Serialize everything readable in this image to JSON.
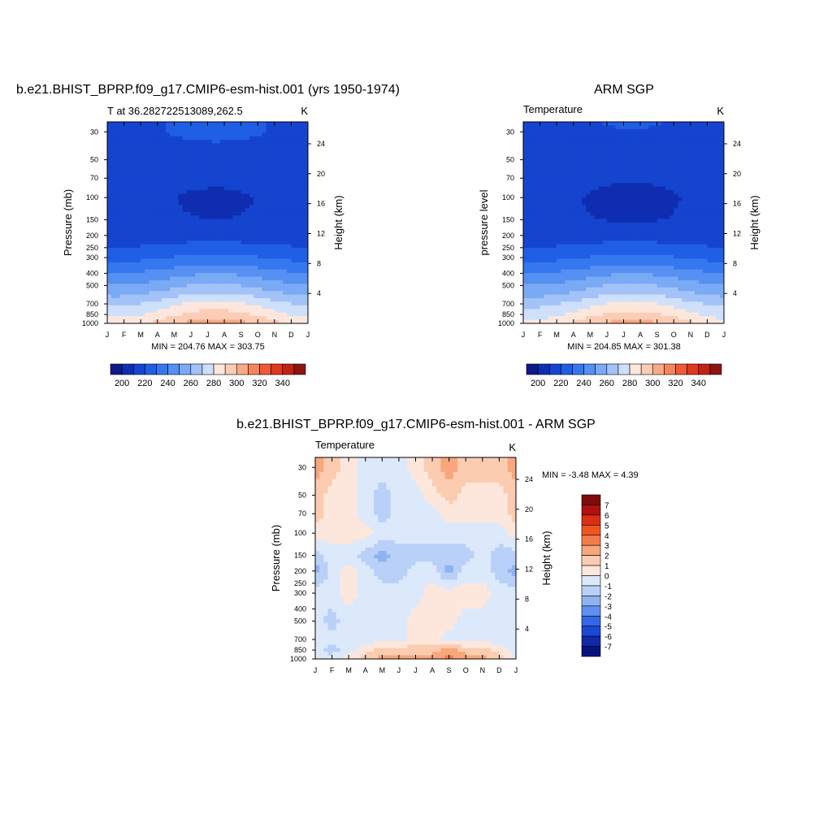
{
  "figure": {
    "panels": [
      {
        "id": "model",
        "title": "b.e21.BHIST_BPRP.f09_g17.CMIP6-esm-hist.001 (yrs 1950-1974)",
        "left_label": "T at 36.282722513089,262.5",
        "units": "K",
        "ylabel": "Pressure (mb)",
        "y2label": "Height (km)",
        "stats": "MIN = 204.76 MAX = 303.75"
      },
      {
        "id": "obs",
        "title": "ARM SGP",
        "left_label": "Temperature",
        "units": "K",
        "ylabel": "pressure level",
        "y2label": "Height (km)",
        "stats": "MIN = 204.85 MAX = 301.38"
      },
      {
        "id": "diff",
        "title": "b.e21.BHIST_BPRP.f09_g17.CMIP6-esm-hist.001 - ARM SGP",
        "left_label": "Temperature",
        "units": "K",
        "ylabel": "Pressure (mb)",
        "y2label": "Height (km)",
        "stats": "MIN =  -3.48 MAX =   4.39"
      }
    ]
  },
  "chart_data": [
    {
      "type": "heatmap",
      "title": "b.e21.BHIST_BPRP.f09_g17.CMIP6-esm-hist.001 (yrs 1950-1974)",
      "subtitle_left": "T at 36.282722513089,262.5",
      "subtitle_right": "K",
      "xlabel": "",
      "ylabel": "Pressure (mb)",
      "y2label": "Height (km)",
      "x": [
        "J",
        "F",
        "M",
        "A",
        "M",
        "J",
        "J",
        "A",
        "S",
        "O",
        "N",
        "D",
        "J"
      ],
      "y_ticks": [
        30,
        50,
        70,
        100,
        150,
        200,
        250,
        300,
        400,
        500,
        700,
        850,
        1000
      ],
      "y2_ticks": [
        24,
        20,
        16,
        12,
        8,
        4
      ],
      "y_scale": "log",
      "ylim": [
        1000,
        25
      ],
      "min": 204.76,
      "max": 303.75,
      "colorbar": {
        "ticks": [
          200,
          220,
          240,
          260,
          280,
          300,
          320,
          340
        ],
        "levels": [
          190,
          200,
          210,
          220,
          230,
          240,
          250,
          260,
          270,
          280,
          290,
          300,
          310,
          320,
          330,
          340,
          350
        ]
      },
      "profile": {
        "pressure": [
          25,
          30,
          50,
          70,
          100,
          150,
          200,
          250,
          300,
          400,
          500,
          700,
          850,
          1000
        ],
        "temperature": [
          220,
          220,
          217,
          213,
          211,
          212,
          216,
          222,
          230,
          245,
          256,
          276,
          286,
          296
        ]
      }
    },
    {
      "type": "heatmap",
      "title": "ARM SGP",
      "subtitle_left": "Temperature",
      "subtitle_right": "K",
      "xlabel": "",
      "ylabel": "pressure level",
      "y2label": "Height (km)",
      "x": [
        "J",
        "F",
        "M",
        "A",
        "M",
        "J",
        "J",
        "A",
        "S",
        "O",
        "N",
        "D",
        "J"
      ],
      "y_ticks": [
        30,
        50,
        70,
        100,
        150,
        200,
        250,
        300,
        400,
        500,
        700,
        850,
        1000
      ],
      "y2_ticks": [
        24,
        20,
        16,
        12,
        8,
        4
      ],
      "y_scale": "log",
      "ylim": [
        1000,
        25
      ],
      "min": 204.85,
      "max": 301.38,
      "colorbar": {
        "ticks": [
          200,
          220,
          240,
          260,
          280,
          300,
          320,
          340
        ],
        "levels": [
          190,
          200,
          210,
          220,
          230,
          240,
          250,
          260,
          270,
          280,
          290,
          300,
          310,
          320,
          330,
          340,
          350
        ]
      },
      "profile": {
        "pressure": [
          25,
          30,
          50,
          70,
          100,
          150,
          200,
          250,
          300,
          400,
          500,
          700,
          850,
          1000
        ],
        "temperature": [
          219,
          218,
          215,
          212,
          210,
          211,
          216,
          222,
          230,
          245,
          256,
          275,
          285,
          294
        ]
      }
    },
    {
      "type": "heatmap",
      "title": "b.e21.BHIST_BPRP.f09_g17.CMIP6-esm-hist.001 - ARM SGP",
      "subtitle_left": "Temperature",
      "subtitle_right": "K",
      "xlabel": "",
      "ylabel": "Pressure (mb)",
      "y2label": "Height (km)",
      "x": [
        "J",
        "F",
        "M",
        "A",
        "M",
        "J",
        "J",
        "A",
        "S",
        "O",
        "N",
        "D",
        "J"
      ],
      "y_ticks": [
        30,
        50,
        70,
        100,
        150,
        200,
        250,
        300,
        400,
        500,
        700,
        850,
        1000
      ],
      "y2_ticks": [
        24,
        20,
        16,
        12,
        8,
        4
      ],
      "y_scale": "log",
      "ylim": [
        1000,
        25
      ],
      "min": -3.48,
      "max": 4.39,
      "colorbar": {
        "ticks": [
          7,
          6,
          5,
          4,
          3,
          2,
          1,
          0,
          -1,
          -2,
          -3,
          -4,
          -5,
          -6,
          -7
        ],
        "levels": [
          8,
          7,
          6,
          5,
          4,
          3,
          2,
          1,
          0,
          -1,
          -2,
          -3,
          -4,
          -5,
          -6,
          -7,
          -8
        ]
      },
      "field": {
        "pressure": [
          30,
          50,
          70,
          100,
          150,
          200,
          300,
          500,
          700,
          850,
          1000
        ],
        "months": [
          "J",
          "F",
          "M",
          "A",
          "M",
          "J",
          "J",
          "A",
          "S",
          "O",
          "N",
          "D",
          "J"
        ],
        "values": [
          [
            2.5,
            1.5,
            0.5,
            -0.5,
            -0.5,
            -0.5,
            0.5,
            1.5,
            2.5,
            1.5,
            1.5,
            1.5,
            2.5
          ],
          [
            1.5,
            0.5,
            0.5,
            -0.5,
            -1.5,
            -0.5,
            -0.5,
            0.5,
            1.5,
            0.5,
            0.5,
            0.5,
            1.5
          ],
          [
            1.5,
            0.5,
            0.5,
            -0.5,
            -1.5,
            -0.5,
            -0.5,
            -0.5,
            0.5,
            0.5,
            0.5,
            0.5,
            1.5
          ],
          [
            0.5,
            0.5,
            0.5,
            0.5,
            -0.5,
            -0.5,
            -0.5,
            -0.5,
            -0.5,
            -0.5,
            -0.5,
            -0.5,
            0.5
          ],
          [
            -1.5,
            -0.5,
            -0.5,
            -1.5,
            -2.5,
            -1.5,
            -1.5,
            -1.5,
            -1.5,
            -1.5,
            -0.5,
            -1.5,
            -1.5
          ],
          [
            -2.5,
            -0.5,
            0.5,
            -0.5,
            -1.5,
            -1.5,
            -0.5,
            -0.5,
            -2.5,
            -0.5,
            -0.5,
            -1.5,
            -2.5
          ],
          [
            -0.5,
            -0.5,
            0.5,
            -0.5,
            -0.5,
            -0.5,
            -0.5,
            0.5,
            0.5,
            0.5,
            0.5,
            -0.5,
            -0.5
          ],
          [
            -0.5,
            -1.5,
            -0.5,
            -0.5,
            -0.5,
            -0.5,
            0.5,
            0.5,
            0.5,
            -0.5,
            -0.5,
            -0.5,
            -0.5
          ],
          [
            -0.5,
            -0.5,
            -0.5,
            -0.5,
            -0.5,
            -0.5,
            0.5,
            0.5,
            -0.5,
            -0.5,
            -0.5,
            -0.5,
            -0.5
          ],
          [
            -0.5,
            -1.5,
            -0.5,
            0.5,
            1.5,
            1.5,
            1.5,
            1.5,
            2.5,
            1.5,
            1.5,
            0.5,
            -0.5
          ],
          [
            -0.5,
            -0.5,
            0.5,
            1.5,
            2.5,
            2.5,
            2.5,
            2.5,
            3.5,
            2.5,
            2.5,
            1.5,
            -0.5
          ]
        ]
      }
    }
  ],
  "colors": {
    "temp_palette": [
      "#0c1a8a",
      "#0f2db0",
      "#1544cf",
      "#1f5ee5",
      "#3577ee",
      "#5590f2",
      "#7aa9f5",
      "#a3c3f8",
      "#cfe0fb",
      "#fde7dc",
      "#fcccb4",
      "#f9aa86",
      "#f5845c",
      "#ee5a36",
      "#de3a1e",
      "#c02314",
      "#8f1410"
    ],
    "diff_palette": [
      "#7e0a0a",
      "#b01010",
      "#db2e12",
      "#f0551f",
      "#f57c48",
      "#f8a67c",
      "#fbccb0",
      "#fde7dc",
      "#dce9fb",
      "#b9d1f8",
      "#8eb3f3",
      "#5f8ff0",
      "#3467e6",
      "#1c47d4",
      "#1029a8",
      "#06137e"
    ]
  }
}
